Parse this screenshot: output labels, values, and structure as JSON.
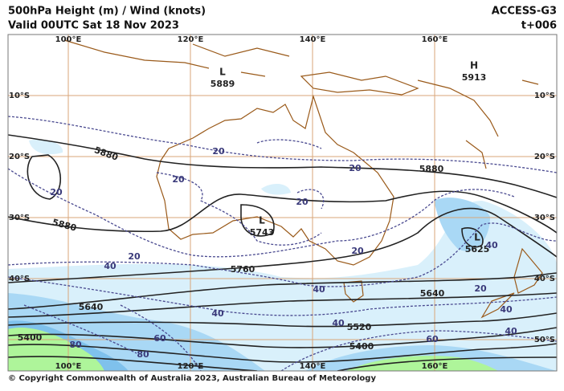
{
  "header": {
    "title": "500hPa Height (m) / Wind (knots)",
    "valid": "Valid 00UTC Sat 18 Nov 2023",
    "model": "ACCESS-G3",
    "lead": "t+006"
  },
  "map": {
    "lon_top": [
      "100°E",
      "120°E",
      "140°E",
      "160°E"
    ],
    "lon_bottom": [
      "100°E",
      "120°E",
      "140°E",
      "160°E"
    ],
    "lat_left": [
      "10°S",
      "20°S",
      "30°S",
      "40°S"
    ],
    "lat_right": [
      "10°S",
      "20°S",
      "30°S",
      "40°S",
      "50°S"
    ],
    "centers": [
      {
        "symbol": "L",
        "value": "5889"
      },
      {
        "symbol": "H",
        "value": "5913"
      },
      {
        "symbol": "L",
        "value": "5743"
      },
      {
        "symbol": "L",
        "value": "5625"
      }
    ],
    "height_labels": [
      "5880",
      "5880",
      "5880",
      "5760",
      "5640",
      "5640",
      "5520",
      "5400",
      "5400"
    ],
    "wind_labels": [
      "20",
      "20",
      "20",
      "20",
      "20",
      "20",
      "20",
      "20",
      "40",
      "40",
      "40",
      "40",
      "40",
      "40",
      "40",
      "60",
      "60",
      "80",
      "80"
    ]
  },
  "footer": "© Copyright Commonwealth of Australia 2023, Australian Bureau of Meteorology"
}
